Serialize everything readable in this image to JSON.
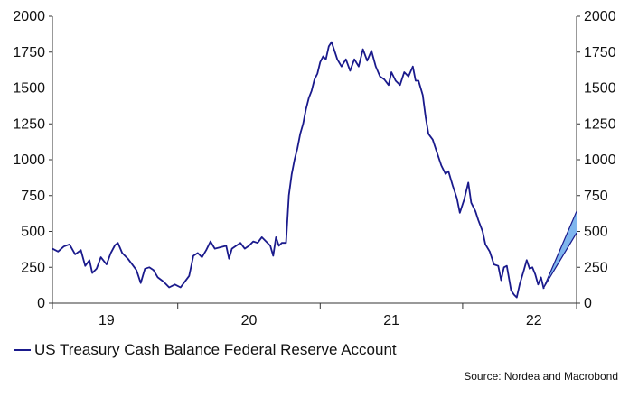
{
  "chart_data": {
    "type": "line",
    "title": "",
    "xlabel": "",
    "ylabel": "",
    "ylim": [
      0,
      2000
    ],
    "y_ticks": [
      "0",
      "250",
      "500",
      "750",
      "1000",
      "1250",
      "1500",
      "1750",
      "2000"
    ],
    "y_tick_values": [
      0,
      250,
      500,
      750,
      1000,
      1250,
      1500,
      1750,
      2000
    ],
    "x_range": [
      2018.62,
      2022.3
    ],
    "x_ticks": [
      {
        "label": "19",
        "value": 2019.0
      },
      {
        "label": "20",
        "value": 2020.0
      },
      {
        "label": "21",
        "value": 2021.0
      },
      {
        "label": "22",
        "value": 2022.0
      }
    ],
    "x_boundaries": [
      2018.62,
      2019.5,
      2020.5,
      2021.5,
      2022.3
    ],
    "grid": false,
    "legend_position": "bottom-left",
    "series": [
      {
        "name": "US Treasury Cash Balance Federal Reserve Account",
        "color": "#1a1a8c",
        "points": [
          [
            2018.62,
            380
          ],
          [
            2018.66,
            360
          ],
          [
            2018.7,
            395
          ],
          [
            2018.74,
            410
          ],
          [
            2018.78,
            340
          ],
          [
            2018.82,
            370
          ],
          [
            2018.85,
            260
          ],
          [
            2018.88,
            300
          ],
          [
            2018.9,
            210
          ],
          [
            2018.93,
            240
          ],
          [
            2018.96,
            320
          ],
          [
            2019.0,
            270
          ],
          [
            2019.03,
            350
          ],
          [
            2019.06,
            405
          ],
          [
            2019.08,
            420
          ],
          [
            2019.11,
            350
          ],
          [
            2019.15,
            310
          ],
          [
            2019.18,
            270
          ],
          [
            2019.21,
            230
          ],
          [
            2019.24,
            140
          ],
          [
            2019.27,
            240
          ],
          [
            2019.3,
            250
          ],
          [
            2019.33,
            230
          ],
          [
            2019.36,
            180
          ],
          [
            2019.4,
            150
          ],
          [
            2019.44,
            110
          ],
          [
            2019.48,
            130
          ],
          [
            2019.52,
            110
          ],
          [
            2019.55,
            150
          ],
          [
            2019.58,
            190
          ],
          [
            2019.61,
            330
          ],
          [
            2019.64,
            350
          ],
          [
            2019.67,
            320
          ],
          [
            2019.7,
            370
          ],
          [
            2019.73,
            430
          ],
          [
            2019.76,
            380
          ],
          [
            2019.8,
            390
          ],
          [
            2019.84,
            400
          ],
          [
            2019.86,
            310
          ],
          [
            2019.88,
            380
          ],
          [
            2019.91,
            400
          ],
          [
            2019.94,
            420
          ],
          [
            2019.97,
            380
          ],
          [
            2020.0,
            400
          ],
          [
            2020.03,
            430
          ],
          [
            2020.06,
            420
          ],
          [
            2020.09,
            460
          ],
          [
            2020.12,
            430
          ],
          [
            2020.15,
            400
          ],
          [
            2020.17,
            330
          ],
          [
            2020.19,
            460
          ],
          [
            2020.21,
            400
          ],
          [
            2020.23,
            420
          ],
          [
            2020.26,
            420
          ],
          [
            2020.28,
            750
          ],
          [
            2020.3,
            900
          ],
          [
            2020.32,
            1000
          ],
          [
            2020.34,
            1080
          ],
          [
            2020.36,
            1180
          ],
          [
            2020.38,
            1250
          ],
          [
            2020.4,
            1350
          ],
          [
            2020.42,
            1430
          ],
          [
            2020.44,
            1480
          ],
          [
            2020.46,
            1560
          ],
          [
            2020.48,
            1600
          ],
          [
            2020.5,
            1680
          ],
          [
            2020.52,
            1720
          ],
          [
            2020.54,
            1700
          ],
          [
            2020.56,
            1790
          ],
          [
            2020.58,
            1820
          ],
          [
            2020.6,
            1760
          ],
          [
            2020.62,
            1700
          ],
          [
            2020.65,
            1650
          ],
          [
            2020.68,
            1700
          ],
          [
            2020.71,
            1620
          ],
          [
            2020.74,
            1700
          ],
          [
            2020.77,
            1650
          ],
          [
            2020.8,
            1770
          ],
          [
            2020.83,
            1690
          ],
          [
            2020.86,
            1760
          ],
          [
            2020.89,
            1650
          ],
          [
            2020.92,
            1580
          ],
          [
            2020.95,
            1560
          ],
          [
            2020.98,
            1520
          ],
          [
            2021.0,
            1610
          ],
          [
            2021.03,
            1550
          ],
          [
            2021.06,
            1520
          ],
          [
            2021.09,
            1610
          ],
          [
            2021.12,
            1580
          ],
          [
            2021.15,
            1650
          ],
          [
            2021.17,
            1550
          ],
          [
            2021.19,
            1550
          ],
          [
            2021.22,
            1450
          ],
          [
            2021.24,
            1300
          ],
          [
            2021.26,
            1180
          ],
          [
            2021.29,
            1140
          ],
          [
            2021.32,
            1050
          ],
          [
            2021.35,
            960
          ],
          [
            2021.38,
            900
          ],
          [
            2021.4,
            920
          ],
          [
            2021.43,
            820
          ],
          [
            2021.46,
            730
          ],
          [
            2021.48,
            630
          ],
          [
            2021.51,
            720
          ],
          [
            2021.54,
            840
          ],
          [
            2021.56,
            700
          ],
          [
            2021.59,
            640
          ],
          [
            2021.61,
            580
          ],
          [
            2021.64,
            500
          ],
          [
            2021.66,
            410
          ],
          [
            2021.69,
            360
          ],
          [
            2021.72,
            270
          ],
          [
            2021.75,
            260
          ],
          [
            2021.77,
            160
          ],
          [
            2021.79,
            250
          ],
          [
            2021.81,
            260
          ],
          [
            2021.84,
            90
          ],
          [
            2021.86,
            60
          ],
          [
            2021.88,
            40
          ],
          [
            2021.9,
            130
          ],
          [
            2021.93,
            230
          ],
          [
            2021.95,
            300
          ],
          [
            2021.97,
            240
          ],
          [
            2021.99,
            250
          ],
          [
            2022.01,
            200
          ],
          [
            2022.03,
            130
          ],
          [
            2022.05,
            180
          ],
          [
            2022.07,
            100
          ]
        ]
      }
    ],
    "projection": {
      "color": "#1a1a8c",
      "fill": "#7fb6ee",
      "start": [
        2022.07,
        110
      ],
      "end_x": 2022.3,
      "end_high": 640,
      "end_low": 490
    }
  },
  "legend": {
    "label": "US Treasury Cash Balance Federal Reserve Account"
  },
  "source": "Source: Nordea and Macrobond"
}
